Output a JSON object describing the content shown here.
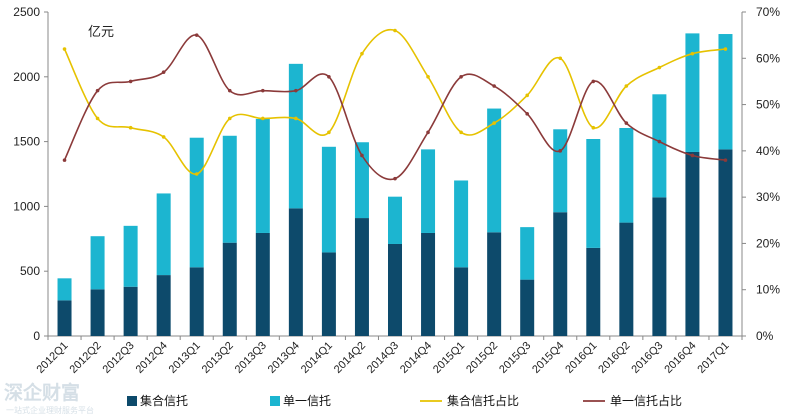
{
  "chart_data": {
    "type": "bar",
    "unit_label": "亿元",
    "categories": [
      "2012Q1",
      "2012Q2",
      "2012Q3",
      "2012Q4",
      "2013Q1",
      "2013Q2",
      "2013Q3",
      "2013Q4",
      "2014Q1",
      "2014Q2",
      "2014Q3",
      "2014Q4",
      "2015Q1",
      "2015Q2",
      "2015Q3",
      "2015Q4",
      "2016Q1",
      "2016Q2",
      "2016Q3",
      "2016Q4",
      "2017Q1"
    ],
    "y_left": {
      "min": 0,
      "max": 2500,
      "step": 500,
      "ticks": [
        "0",
        "500",
        "1000",
        "1500",
        "2000",
        "2500"
      ]
    },
    "y_right": {
      "min": 0,
      "max": 70,
      "step": 10,
      "ticks": [
        "0%",
        "10%",
        "20%",
        "30%",
        "40%",
        "50%",
        "60%",
        "70%"
      ]
    },
    "stacked": true,
    "grid": false,
    "legend_position": "bottom",
    "series": [
      {
        "name": "集合信托",
        "kind": "bar",
        "axis": "left",
        "color": "#0d4a6b",
        "values": [
          275,
          360,
          380,
          470,
          530,
          720,
          795,
          985,
          645,
          910,
          710,
          795,
          530,
          800,
          435,
          955,
          680,
          875,
          1070,
          1420,
          1440
        ]
      },
      {
        "name": "单一信托",
        "kind": "bar",
        "axis": "left",
        "color": "#1cb5d0",
        "values": [
          170,
          410,
          470,
          630,
          1000,
          825,
          880,
          1115,
          815,
          585,
          365,
          645,
          670,
          955,
          405,
          640,
          840,
          730,
          795,
          915,
          890
        ]
      },
      {
        "name": "集合信托占比",
        "kind": "line",
        "axis": "right",
        "color": "#e6c200",
        "values": [
          62,
          47,
          45,
          43,
          35,
          47,
          47,
          47,
          44,
          61,
          66,
          56,
          44,
          46,
          52,
          60,
          45,
          54,
          58,
          61,
          62
        ]
      },
      {
        "name": "单一信托占比",
        "kind": "line",
        "axis": "right",
        "color": "#8b3a3a",
        "values": [
          38,
          53,
          55,
          57,
          65,
          53,
          53,
          53,
          56,
          39,
          34,
          44,
          56,
          54,
          48,
          40,
          55,
          46,
          42,
          39,
          38
        ]
      }
    ]
  },
  "watermark": {
    "text_line1": "深企财富",
    "text_line2": "一站式企业理财服务平台"
  }
}
